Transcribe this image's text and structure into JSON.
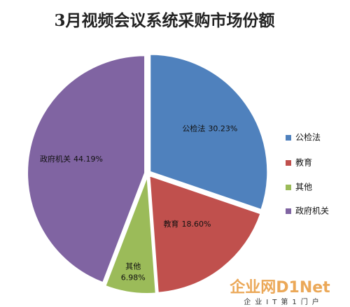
{
  "chart_data": {
    "type": "pie",
    "title": "3月视频会议系统采购市场份额",
    "categories": [
      "公检法",
      "教育",
      "其他",
      "政府机关"
    ],
    "values": [
      30.23,
      18.6,
      6.98,
      44.19
    ],
    "value_labels": [
      "30.23%",
      "18.60%",
      "6.98%",
      "44.19%"
    ],
    "colors": [
      "#4f81bd",
      "#c0504d",
      "#9bbb59",
      "#8064a2"
    ],
    "legend": "right"
  },
  "watermark": {
    "logo": "企业网D1Net",
    "slogan": "企业IT第1门户"
  }
}
